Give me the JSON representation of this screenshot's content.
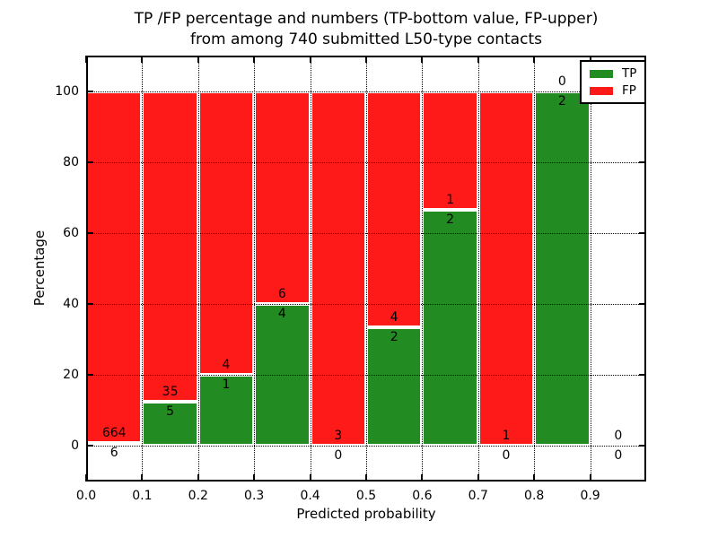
{
  "chart_data": {
    "type": "bar",
    "stacked": true,
    "title_line1": "TP /FP percentage and numbers (TP-bottom value, FP-upper)",
    "title_line2": "from among 740 submitted L50-type contacts",
    "xlabel": "Predicted probability",
    "ylabel": "Percentage",
    "total_contacts": 740,
    "grid": "dotted, on all major ticks, drawn over bars",
    "legend": {
      "position": "upper right",
      "items": [
        {
          "label": "TP",
          "color": "#228b22"
        },
        {
          "label": "FP",
          "color": "#ff1a1a"
        }
      ]
    },
    "colors": {
      "tp": "#228b22",
      "fp": "#ff1a1a",
      "bar_edge": "#ffffff",
      "axis": "#000000"
    },
    "xaxis": {
      "range": [
        0.0,
        1.0
      ],
      "tick_labels": [
        "0.0",
        "0.1",
        "0.2",
        "0.3",
        "0.4",
        "0.5",
        "0.6",
        "0.7",
        "0.8",
        "0.9"
      ]
    },
    "yaxis": {
      "range": [
        -10,
        110
      ],
      "tick_labels": [
        "0",
        "20",
        "40",
        "60",
        "80",
        "100"
      ],
      "tick_values": [
        0,
        20,
        40,
        60,
        80,
        100
      ]
    },
    "bins": [
      {
        "range": "0.0-0.1",
        "tp": 6,
        "fp": 664,
        "tp_pct": 0.9
      },
      {
        "range": "0.1-0.2",
        "tp": 5,
        "fp": 35,
        "tp_pct": 12.5
      },
      {
        "range": "0.2-0.3",
        "tp": 1,
        "fp": 4,
        "tp_pct": 20.0
      },
      {
        "range": "0.3-0.4",
        "tp": 4,
        "fp": 6,
        "tp_pct": 40.0
      },
      {
        "range": "0.4-0.5",
        "tp": 0,
        "fp": 3,
        "tp_pct": 0.0
      },
      {
        "range": "0.5-0.6",
        "tp": 2,
        "fp": 4,
        "tp_pct": 33.3
      },
      {
        "range": "0.6-0.7",
        "tp": 2,
        "fp": 1,
        "tp_pct": 66.7
      },
      {
        "range": "0.7-0.8",
        "tp": 0,
        "fp": 1,
        "tp_pct": 0.0
      },
      {
        "range": "0.8-0.9",
        "tp": 2,
        "fp": 0,
        "tp_pct": 100.0
      },
      {
        "range": "0.9-1.0",
        "tp": 0,
        "fp": 0,
        "tp_pct": 0.0
      }
    ]
  }
}
